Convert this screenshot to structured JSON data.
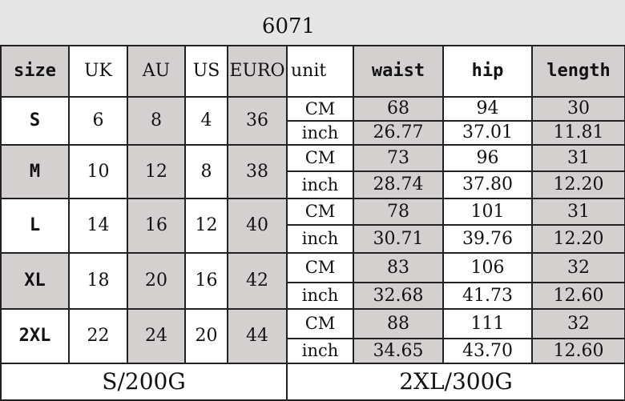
{
  "title": "6071",
  "colors": {
    "shade": "#d4d0d0",
    "top_band": "#e6e6e6",
    "border": "#222222"
  },
  "headers": [
    "size",
    "UK",
    "AU",
    "US",
    "EURO",
    "unit",
    "waist",
    "hip",
    "length"
  ],
  "rows": [
    {
      "size": "S",
      "uk": "6",
      "au": "8",
      "us": "4",
      "euro": "36",
      "cm": {
        "unit": "CM",
        "waist": "68",
        "hip": "94",
        "length": "30"
      },
      "inch": {
        "unit": "inch",
        "waist": "26.77",
        "hip": "37.01",
        "length": "11.81"
      }
    },
    {
      "size": "M",
      "uk": "10",
      "au": "12",
      "us": "8",
      "euro": "38",
      "cm": {
        "unit": "CM",
        "waist": "73",
        "hip": "96",
        "length": "31"
      },
      "inch": {
        "unit": "inch",
        "waist": "28.74",
        "hip": "37.80",
        "length": "12.20"
      }
    },
    {
      "size": "L",
      "uk": "14",
      "au": "16",
      "us": "12",
      "euro": "40",
      "cm": {
        "unit": "CM",
        "waist": "78",
        "hip": "101",
        "length": "31"
      },
      "inch": {
        "unit": "inch",
        "waist": "30.71",
        "hip": "39.76",
        "length": "12.20"
      }
    },
    {
      "size": "XL",
      "uk": "18",
      "au": "20",
      "us": "16",
      "euro": "42",
      "cm": {
        "unit": "CM",
        "waist": "83",
        "hip": "106",
        "length": "32"
      },
      "inch": {
        "unit": "inch",
        "waist": "32.68",
        "hip": "41.73",
        "length": "12.60"
      }
    },
    {
      "size": "2XL",
      "uk": "22",
      "au": "24",
      "us": "20",
      "euro": "44",
      "cm": {
        "unit": "CM",
        "waist": "88",
        "hip": "111",
        "length": "32"
      },
      "inch": {
        "unit": "inch",
        "waist": "34.65",
        "hip": "43.70",
        "length": "12.60"
      }
    }
  ],
  "footer": {
    "left": "S/200G",
    "right": "2XL/300G"
  }
}
